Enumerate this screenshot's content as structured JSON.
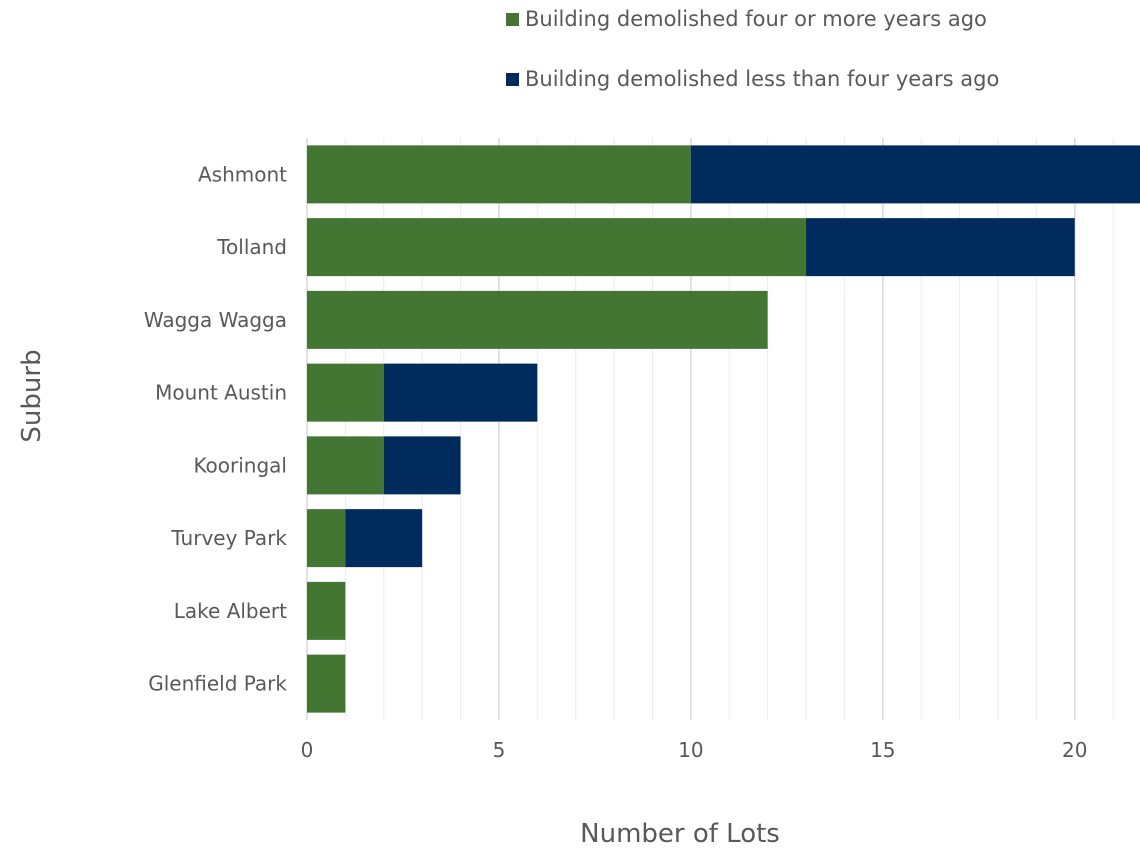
{
  "chart_data": {
    "type": "bar",
    "orientation": "horizontal",
    "stacked": true,
    "categories": [
      "Ashmont",
      "Tolland",
      "Wagga Wagga",
      "Mount Austin",
      "Kooringal",
      "Turvey Park",
      "Lake Albert",
      "Glenfield Park"
    ],
    "series": [
      {
        "name": "Building demolished four or more years ago",
        "color": "#427632",
        "values": [
          10,
          13,
          12,
          2,
          2,
          1,
          1,
          1
        ]
      },
      {
        "name": "Building demolished less than four years ago",
        "color": "#002b5c",
        "values": [
          12,
          7,
          0,
          4,
          2,
          2,
          0,
          0
        ]
      }
    ],
    "xlabel": "Number of Lots",
    "ylabel": "Suburb",
    "xlim": [
      0,
      21.7
    ],
    "xticks": [
      0,
      5,
      10,
      15,
      20
    ],
    "grid": true,
    "legend_position": "top"
  }
}
